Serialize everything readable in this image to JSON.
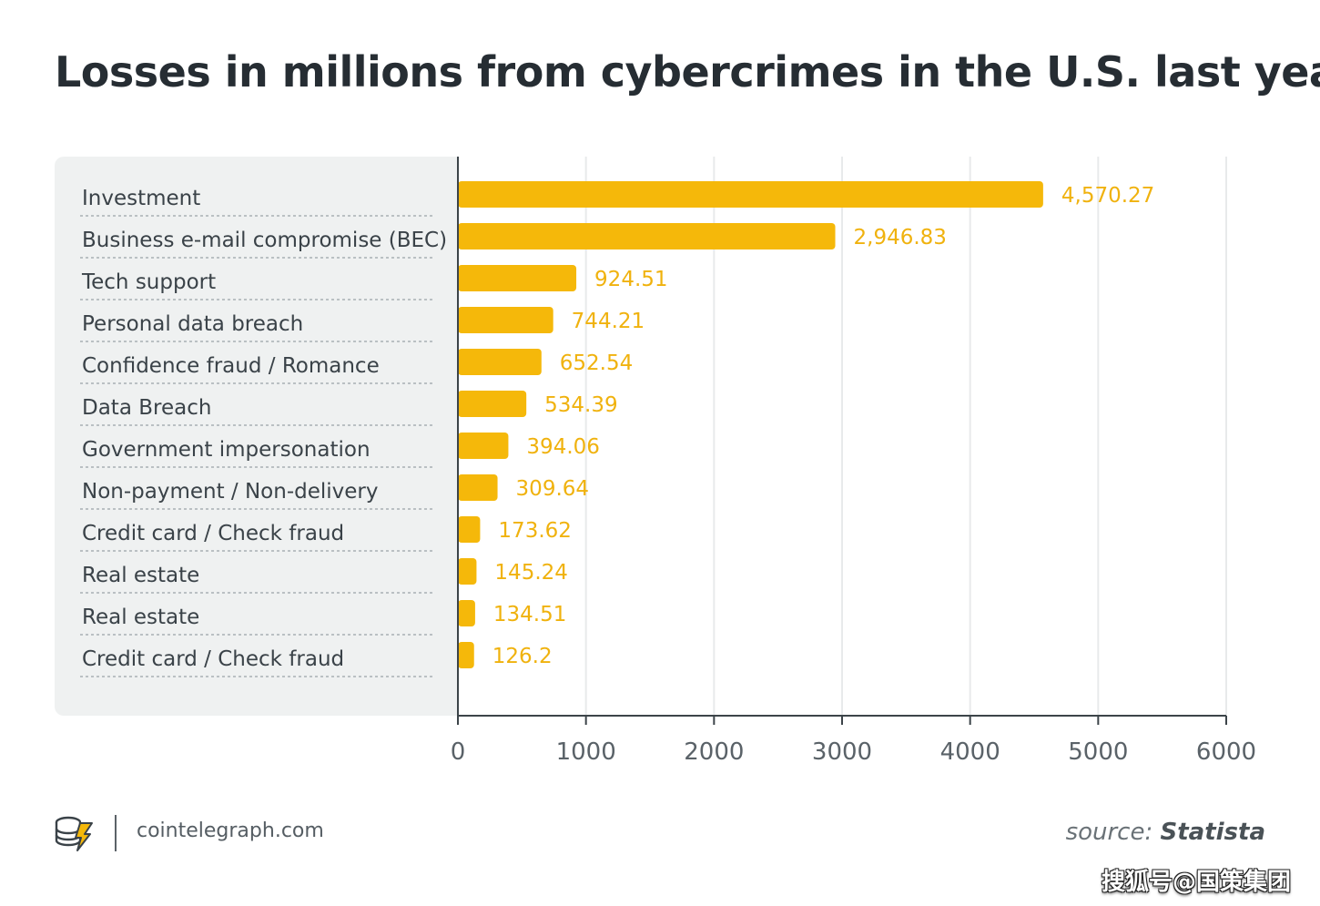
{
  "title": "Losses in millions from cybercrimes in the U.S. last year",
  "footer": {
    "site": "cointelegraph.com",
    "source_prefix": "source: ",
    "source_name": "Statista",
    "logo_icon": "cointelegraph-coin-bolt-icon"
  },
  "watermark": "搜狐号@国策集团",
  "colors": {
    "bar": "#f5b80a",
    "value_label": "#f0b20e",
    "label_text": "#3a4248",
    "panel_bg": "#eff1f1",
    "grid": "#e8eaeb",
    "axis": "#3c4449",
    "tick_text": "#5a6268"
  },
  "chart_data": {
    "type": "bar",
    "orientation": "horizontal",
    "title": "Losses in millions from cybercrimes in the U.S. last year",
    "categories": [
      "Investment",
      "Business e-mail compromise (BEC)",
      "Tech support",
      "Personal data breach",
      "Confidence fraud / Romance",
      "Data Breach",
      "Government impersonation",
      "Non-payment / Non-delivery",
      "Credit card / Check fraud",
      "Real estate",
      "Real estate",
      "Credit card / Check fraud"
    ],
    "values": [
      4570.27,
      2946.83,
      924.51,
      744.21,
      652.54,
      534.39,
      394.06,
      309.64,
      173.62,
      145.24,
      134.51,
      126.2
    ],
    "value_labels": [
      "4,570.27",
      "2,946.83",
      "924.51",
      "744.21",
      "652.54",
      "534.39",
      "394.06",
      "309.64",
      "173.62",
      "145.24",
      "134.51",
      "126.2"
    ],
    "xlim": [
      0,
      6000
    ],
    "xticks": [
      0,
      1000,
      2000,
      3000,
      4000,
      5000,
      6000
    ],
    "xtick_labels": [
      "0",
      "1000",
      "2000",
      "3000",
      "4000",
      "5000",
      "6000"
    ],
    "xlabel": "",
    "ylabel": "",
    "grid": "vertical"
  }
}
